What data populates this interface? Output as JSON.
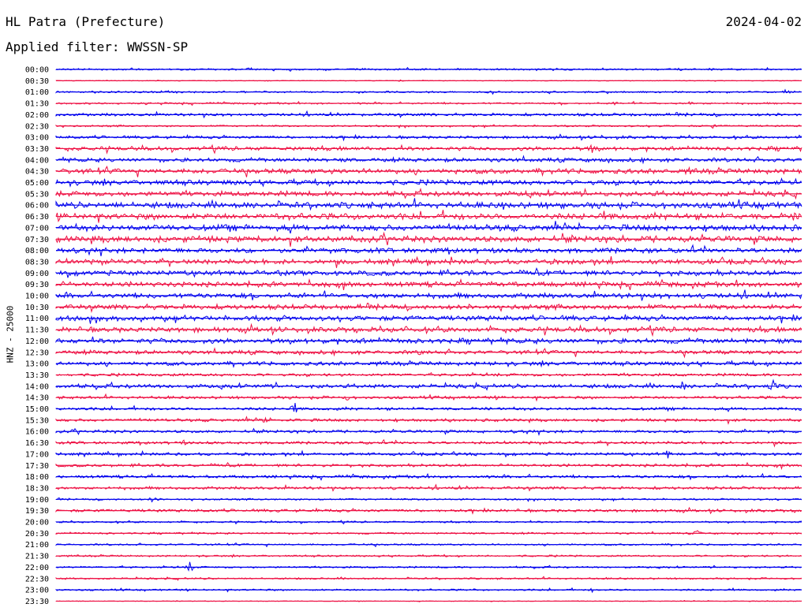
{
  "header": {
    "station": "HL Patra (Prefecture)",
    "date": "2024-04-02",
    "filter": "Applied filter: WWSSN-SP"
  },
  "colors": {
    "trace_a": "#0000ee",
    "trace_b": "#ee1144",
    "text": "#000000"
  },
  "chart_data": {
    "type": "line",
    "title": "HL Patra (Prefecture)",
    "ylabel": "HNZ - 25000",
    "xlabel": "",
    "grid": false,
    "legend": "none",
    "row_labels": [
      "00:00",
      "00:30",
      "01:00",
      "01:30",
      "02:00",
      "02:30",
      "03:00",
      "03:30",
      "04:00",
      "04:30",
      "05:00",
      "05:30",
      "06:00",
      "06:30",
      "07:00",
      "07:30",
      "08:00",
      "08:30",
      "09:00",
      "09:30",
      "10:00",
      "10:30",
      "11:00",
      "11:30",
      "12:00",
      "12:30",
      "13:00",
      "13:30",
      "14:00",
      "14:30",
      "15:00",
      "15:30",
      "16:00",
      "16:30",
      "17:00",
      "17:30",
      "18:00",
      "18:30",
      "19:00",
      "19:30",
      "20:00",
      "20:30",
      "21:00",
      "21:30",
      "22:00",
      "22:30",
      "23:00",
      "23:30"
    ],
    "noise_level": [
      1,
      0,
      1,
      1,
      2,
      1,
      2,
      3,
      3,
      4,
      4,
      4,
      5,
      5,
      5,
      5,
      4,
      4,
      4,
      4,
      4,
      4,
      4,
      4,
      4,
      3,
      3,
      2,
      3,
      2,
      2,
      2,
      2,
      2,
      2,
      2,
      2,
      2,
      1,
      2,
      1,
      1,
      1,
      1,
      1,
      1,
      1,
      0
    ],
    "events": [
      {
        "row": 0,
        "t": 0.26,
        "amp": 3
      },
      {
        "row": 1,
        "t": 0.46,
        "amp": 2
      },
      {
        "row": 2,
        "t": 0.98,
        "amp": 5
      },
      {
        "row": 3,
        "t": 0.75,
        "amp": 4
      },
      {
        "row": 3,
        "t": 0.85,
        "amp": 4
      },
      {
        "row": 5,
        "t": 0.88,
        "amp": 4
      },
      {
        "row": 6,
        "t": 0.73,
        "amp": 5
      },
      {
        "row": 7,
        "t": 0.72,
        "amp": 10
      },
      {
        "row": 8,
        "t": 0.73,
        "amp": 4
      },
      {
        "row": 9,
        "t": 0.85,
        "amp": 6
      },
      {
        "row": 11,
        "t": 0.63,
        "amp": 5
      },
      {
        "row": 12,
        "t": 0.6,
        "amp": 6
      },
      {
        "row": 13,
        "t": 0.99,
        "amp": 7
      },
      {
        "row": 15,
        "t": 0.69,
        "amp": 6
      },
      {
        "row": 17,
        "t": 0.88,
        "amp": 6
      },
      {
        "row": 19,
        "t": 0.61,
        "amp": 6
      },
      {
        "row": 20,
        "t": 0.43,
        "amp": 6
      },
      {
        "row": 23,
        "t": 0.47,
        "amp": 7
      },
      {
        "row": 25,
        "t": 0.49,
        "amp": 7
      },
      {
        "row": 28,
        "t": 0.84,
        "amp": 9
      },
      {
        "row": 28,
        "t": 0.96,
        "amp": 12
      },
      {
        "row": 29,
        "t": 0.39,
        "amp": 5
      },
      {
        "row": 30,
        "t": 0.32,
        "amp": 9
      },
      {
        "row": 31,
        "t": 0.28,
        "amp": 6
      },
      {
        "row": 33,
        "t": 0.17,
        "amp": 5
      },
      {
        "row": 34,
        "t": 0.82,
        "amp": 8
      },
      {
        "row": 38,
        "t": 0.13,
        "amp": 6
      },
      {
        "row": 41,
        "t": 0.86,
        "amp": 5
      },
      {
        "row": 44,
        "t": 0.18,
        "amp": 8
      },
      {
        "row": 46,
        "t": 0.72,
        "amp": 4
      }
    ]
  }
}
